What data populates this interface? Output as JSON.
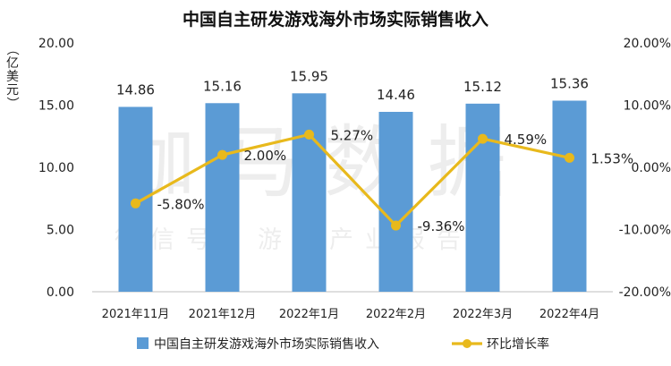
{
  "chart_data": {
    "type": "bar+line",
    "title": "中国自主研发游戏海外市场实际销售收入",
    "categories": [
      "2021年11月",
      "2021年12月",
      "2022年1月",
      "2022年2月",
      "2022年3月",
      "2022年4月"
    ],
    "series": [
      {
        "name": "中国自主研发游戏海外市场实际销售收入",
        "type": "bar",
        "axis": "left",
        "values": [
          14.86,
          15.16,
          15.95,
          14.46,
          15.12,
          15.36
        ],
        "labels": [
          "14.86",
          "15.16",
          "15.95",
          "14.46",
          "15.12",
          "15.36"
        ],
        "color": "#5b9bd5"
      },
      {
        "name": "环比增长率",
        "type": "line",
        "axis": "right",
        "values": [
          -5.8,
          2.0,
          5.27,
          -9.36,
          4.59,
          1.53
        ],
        "labels": [
          "-5.80%",
          "2.00%",
          "5.27%",
          "-9.36%",
          "4.59%",
          "1.53%"
        ],
        "color": "#e8b91c"
      }
    ],
    "y_left": {
      "label": "（亿美元）",
      "ylim": [
        0,
        20
      ],
      "ticks": [
        0,
        5,
        10,
        15,
        20
      ],
      "tick_labels": [
        "0.00",
        "5.00",
        "10.00",
        "15.00",
        "20.00"
      ]
    },
    "y_right": {
      "ylim": [
        -20,
        20
      ],
      "ticks": [
        -20,
        -10,
        0,
        10,
        20
      ],
      "tick_labels": [
        "-20.00%",
        "-10.00%",
        "0.00%",
        "10.00%",
        "20.00%"
      ]
    },
    "legend_position": "bottom",
    "grid": false
  },
  "watermark": {
    "main": "伽马数据",
    "sub": "微信号：游戏产业报告"
  }
}
